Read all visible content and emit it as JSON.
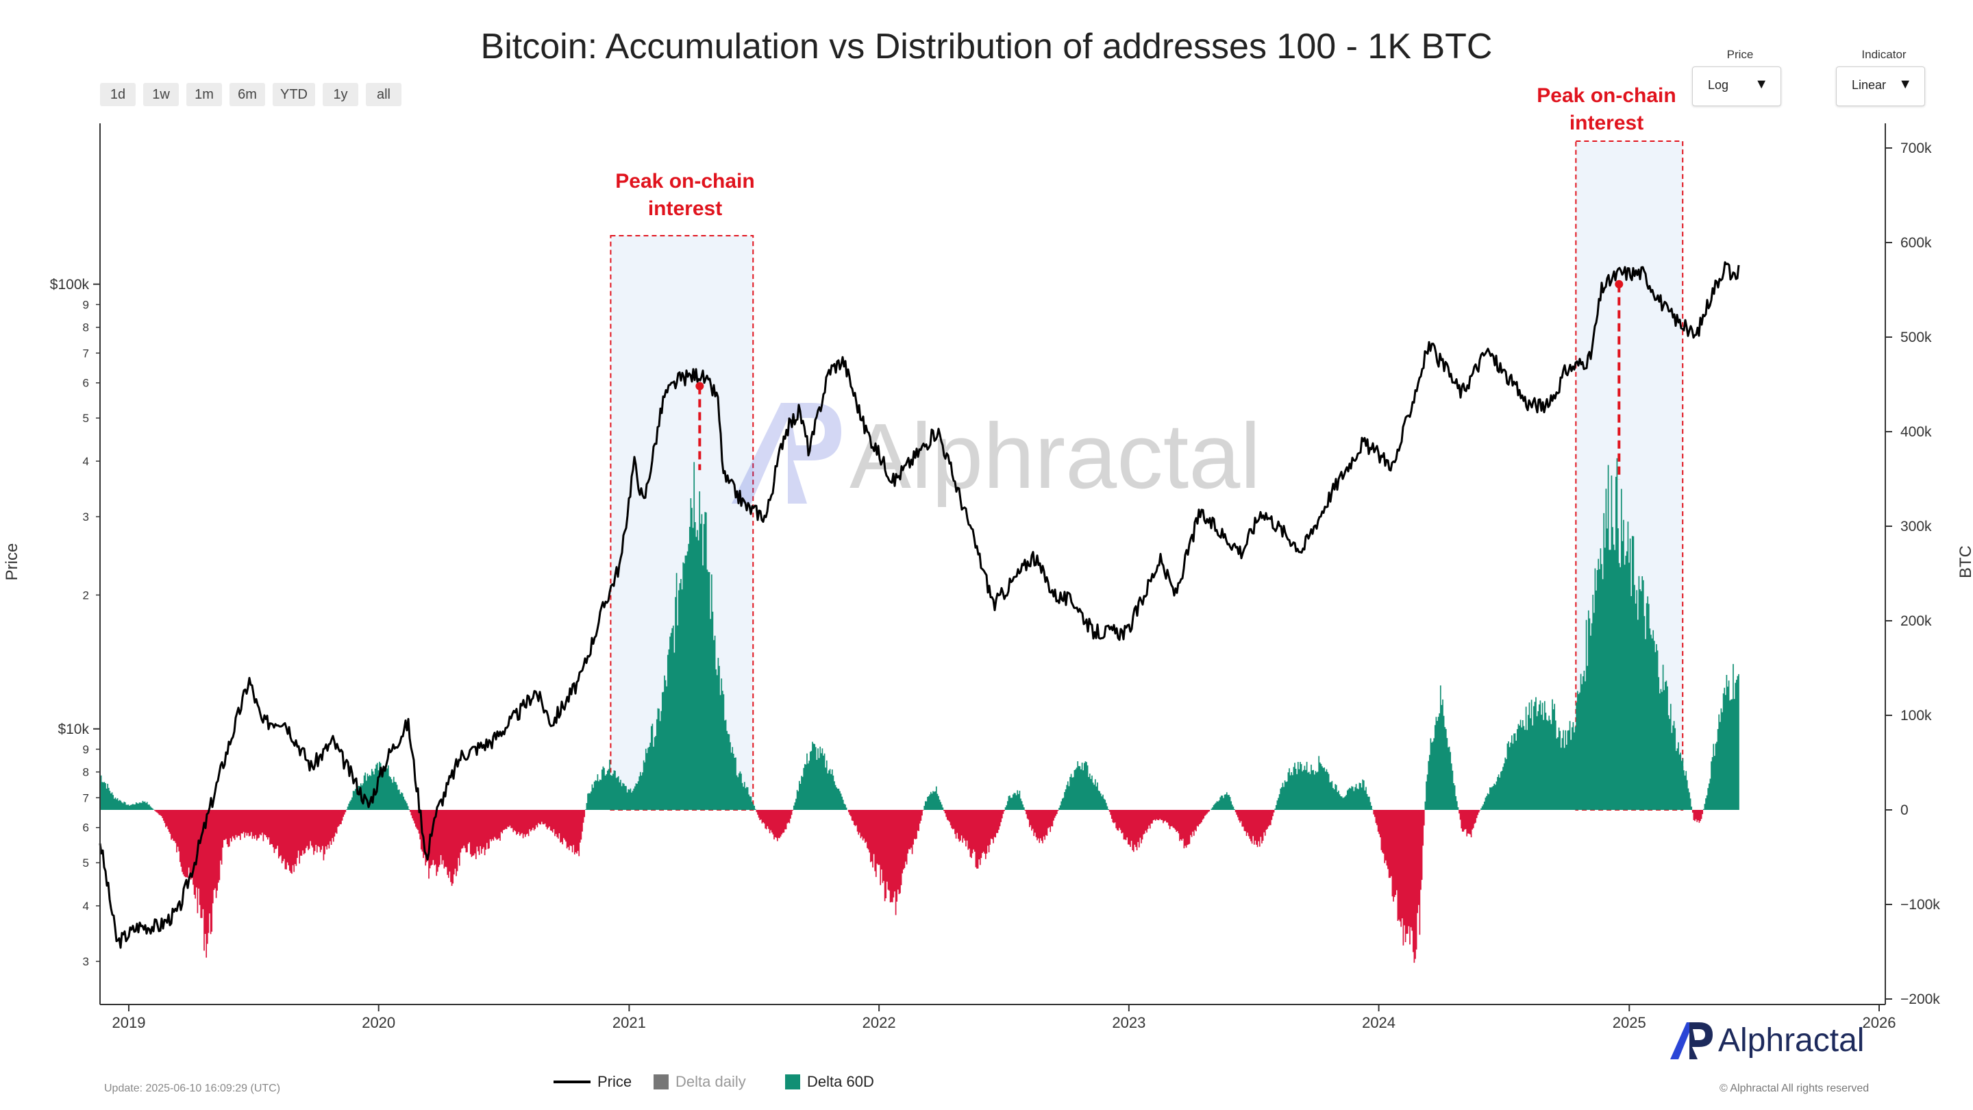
{
  "title": "Bitcoin: Accumulation vs Distribution of addresses 100 - 1K BTC",
  "range_buttons": [
    "1d",
    "1w",
    "1m",
    "6m",
    "YTD",
    "1y",
    "all"
  ],
  "controls": {
    "price": {
      "label": "Price",
      "value": "Log"
    },
    "indicator": {
      "label": "Indicator",
      "value": "Linear"
    }
  },
  "axes": {
    "left_title": "Price",
    "right_title": "BTC"
  },
  "annotations": [
    {
      "line1": "Peak on-chain",
      "line2": "interest"
    },
    {
      "line1": "Peak on-chain",
      "line2": "interest"
    }
  ],
  "watermark": "Alphractal",
  "brand": "Alphractal",
  "update_text": "Update: 2025-06-10 16:09:29 (UTC)",
  "copyright": "© Alphractal All rights reserved",
  "legend": [
    {
      "label": "Price",
      "color": "#000000",
      "muted": false
    },
    {
      "label": "Delta daily",
      "color": "#777777",
      "muted": true
    },
    {
      "label": "Delta 60D",
      "color": "#118f74",
      "muted": false
    }
  ],
  "colors": {
    "positive": "#118f74",
    "negative": "#dc143c",
    "price": "#000000",
    "annotation": "#e0131d",
    "highlight": "#eef4fb"
  },
  "chart_data": {
    "type": "line",
    "x_range": [
      "2018-11-20",
      "2026-01-10"
    ],
    "x_ticks": [
      "2019",
      "2020",
      "2021",
      "2022",
      "2023",
      "2024",
      "2025",
      "2026"
    ],
    "price_scale": "log",
    "price_range": [
      2400,
      230000
    ],
    "price_major_ticks": [
      {
        "value": 10000,
        "label": "$10k"
      },
      {
        "value": 100000,
        "label": "$100k"
      }
    ],
    "price_minor_ticks": [
      {
        "value": 3000,
        "label": "3"
      },
      {
        "value": 4000,
        "label": "4"
      },
      {
        "value": 5000,
        "label": "5"
      },
      {
        "value": 6000,
        "label": "6"
      },
      {
        "value": 7000,
        "label": "7"
      },
      {
        "value": 8000,
        "label": "8"
      },
      {
        "value": 9000,
        "label": "9"
      },
      {
        "value": 20000,
        "label": "2"
      },
      {
        "value": 30000,
        "label": "3"
      },
      {
        "value": 40000,
        "label": "4"
      },
      {
        "value": 50000,
        "label": "5"
      },
      {
        "value": 60000,
        "label": "6"
      },
      {
        "value": 70000,
        "label": "7"
      },
      {
        "value": 80000,
        "label": "8"
      },
      {
        "value": 90000,
        "label": "9"
      }
    ],
    "btc_range": [
      -200000,
      700000
    ],
    "btc_ticks": [
      {
        "value": 700000,
        "label": "700k"
      },
      {
        "value": 600000,
        "label": "600k"
      },
      {
        "value": 500000,
        "label": "500k"
      },
      {
        "value": 400000,
        "label": "400k"
      },
      {
        "value": 300000,
        "label": "300k"
      },
      {
        "value": 200000,
        "label": "200k"
      },
      {
        "value": 100000,
        "label": "100k"
      },
      {
        "value": 0,
        "label": "0"
      },
      {
        "value": -100000,
        "label": "−100k"
      },
      {
        "value": -200000,
        "label": "−200k"
      }
    ],
    "price_series": {
      "name": "Price",
      "points": [
        [
          "2018-11-20",
          5600
        ],
        [
          "2018-12-15",
          3300
        ],
        [
          "2019-01-15",
          3600
        ],
        [
          "2019-02-15",
          3600
        ],
        [
          "2019-03-15",
          3900
        ],
        [
          "2019-04-10",
          5200
        ],
        [
          "2019-05-15",
          8000
        ],
        [
          "2019-06-26",
          12900
        ],
        [
          "2019-07-15",
          10300
        ],
        [
          "2019-08-15",
          10500
        ],
        [
          "2019-09-25",
          8200
        ],
        [
          "2019-10-26",
          9400
        ],
        [
          "2019-12-17",
          6700
        ],
        [
          "2020-01-15",
          8700
        ],
        [
          "2020-02-13",
          10300
        ],
        [
          "2020-03-12",
          5000
        ],
        [
          "2020-03-20",
          6200
        ],
        [
          "2020-04-30",
          8700
        ],
        [
          "2020-06-15",
          9400
        ],
        [
          "2020-07-27",
          11000
        ],
        [
          "2020-08-17",
          12200
        ],
        [
          "2020-09-10",
          10300
        ],
        [
          "2020-10-21",
          12900
        ],
        [
          "2020-11-25",
          18900
        ],
        [
          "2020-12-20",
          23800
        ],
        [
          "2021-01-08",
          40000
        ],
        [
          "2021-01-22",
          32000
        ],
        [
          "2021-02-21",
          56000
        ],
        [
          "2021-03-14",
          61000
        ],
        [
          "2021-04-14",
          63000
        ],
        [
          "2021-05-10",
          56000
        ],
        [
          "2021-05-19",
          37000
        ],
        [
          "2021-06-22",
          31500
        ],
        [
          "2021-07-20",
          30000
        ],
        [
          "2021-08-15",
          46000
        ],
        [
          "2021-09-07",
          52000
        ],
        [
          "2021-09-21",
          42000
        ],
        [
          "2021-10-20",
          64000
        ],
        [
          "2021-11-10",
          67500
        ],
        [
          "2021-12-10",
          48000
        ],
        [
          "2022-01-22",
          36000
        ],
        [
          "2022-03-28",
          47000
        ],
        [
          "2022-05-12",
          29000
        ],
        [
          "2022-06-18",
          19000
        ],
        [
          "2022-08-14",
          24500
        ],
        [
          "2022-09-15",
          20000
        ],
        [
          "2022-10-15",
          19200
        ],
        [
          "2022-11-09",
          16500
        ],
        [
          "2022-12-30",
          16500
        ],
        [
          "2023-02-15",
          24000
        ],
        [
          "2023-03-10",
          20000
        ],
        [
          "2023-04-14",
          30500
        ],
        [
          "2023-06-15",
          25000
        ],
        [
          "2023-07-14",
          31000
        ],
        [
          "2023-09-11",
          25200
        ],
        [
          "2023-10-24",
          34000
        ],
        [
          "2023-12-08",
          44000
        ],
        [
          "2024-01-23",
          39000
        ],
        [
          "2024-03-14",
          73000
        ],
        [
          "2024-05-01",
          57000
        ],
        [
          "2024-06-07",
          71000
        ],
        [
          "2024-08-05",
          54000
        ],
        [
          "2024-09-06",
          53000
        ],
        [
          "2024-09-30",
          64000
        ],
        [
          "2024-11-05",
          68000
        ],
        [
          "2024-11-22",
          98000
        ],
        [
          "2024-12-17",
          106000
        ],
        [
          "2025-01-21",
          106000
        ],
        [
          "2025-02-25",
          87000
        ],
        [
          "2025-04-08",
          76000
        ],
        [
          "2025-05-01",
          95000
        ],
        [
          "2025-05-22",
          111000
        ],
        [
          "2025-06-05",
          101000
        ],
        [
          "2025-06-10",
          109000
        ]
      ]
    },
    "delta_60d_series": {
      "name": "Delta 60D",
      "unit": "BTC",
      "points": [
        [
          "2018-11-20",
          40000
        ],
        [
          "2018-12-10",
          15000
        ],
        [
          "2019-01-01",
          5000
        ],
        [
          "2019-01-25",
          10000
        ],
        [
          "2019-02-20",
          -10000
        ],
        [
          "2019-03-10",
          -40000
        ],
        [
          "2019-03-25",
          -70000
        ],
        [
          "2019-04-10",
          -95000
        ],
        [
          "2019-04-25",
          -150000
        ],
        [
          "2019-05-05",
          -110000
        ],
        [
          "2019-05-20",
          -40000
        ],
        [
          "2019-06-15",
          -30000
        ],
        [
          "2019-07-15",
          -30000
        ],
        [
          "2019-08-05",
          -45000
        ],
        [
          "2019-08-25",
          -65000
        ],
        [
          "2019-09-20",
          -40000
        ],
        [
          "2019-10-15",
          -50000
        ],
        [
          "2019-11-10",
          -10000
        ],
        [
          "2019-11-25",
          20000
        ],
        [
          "2019-12-15",
          40000
        ],
        [
          "2020-01-10",
          50000
        ],
        [
          "2020-01-25",
          30000
        ],
        [
          "2020-02-10",
          10000
        ],
        [
          "2020-02-25",
          -20000
        ],
        [
          "2020-03-15",
          -70000
        ],
        [
          "2020-04-01",
          -60000
        ],
        [
          "2020-04-20",
          -85000
        ],
        [
          "2020-05-05",
          -40000
        ],
        [
          "2020-05-25",
          -50000
        ],
        [
          "2020-06-20",
          -35000
        ],
        [
          "2020-07-10",
          -20000
        ],
        [
          "2020-08-01",
          -30000
        ],
        [
          "2020-08-25",
          -15000
        ],
        [
          "2020-09-20",
          -30000
        ],
        [
          "2020-10-05",
          -40000
        ],
        [
          "2020-10-20",
          -50000
        ],
        [
          "2020-11-01",
          15000
        ],
        [
          "2020-11-15",
          35000
        ],
        [
          "2020-12-01",
          50000
        ],
        [
          "2020-12-15",
          40000
        ],
        [
          "2020-12-30",
          20000
        ],
        [
          "2021-01-15",
          30000
        ],
        [
          "2021-01-31",
          80000
        ],
        [
          "2021-02-10",
          90000
        ],
        [
          "2021-02-25",
          150000
        ],
        [
          "2021-03-10",
          220000
        ],
        [
          "2021-03-25",
          320000
        ],
        [
          "2021-04-05",
          370000
        ],
        [
          "2021-04-15",
          345000
        ],
        [
          "2021-04-25",
          280000
        ],
        [
          "2021-05-10",
          170000
        ],
        [
          "2021-05-25",
          80000
        ],
        [
          "2021-06-10",
          40000
        ],
        [
          "2021-06-25",
          20000
        ],
        [
          "2021-07-10",
          -10000
        ],
        [
          "2021-07-25",
          -25000
        ],
        [
          "2021-08-10",
          -35000
        ],
        [
          "2021-08-25",
          -10000
        ],
        [
          "2021-09-10",
          40000
        ],
        [
          "2021-09-25",
          70000
        ],
        [
          "2021-10-10",
          60000
        ],
        [
          "2021-10-25",
          40000
        ],
        [
          "2021-11-10",
          10000
        ],
        [
          "2021-11-25",
          -15000
        ],
        [
          "2021-12-10",
          -35000
        ],
        [
          "2021-12-25",
          -60000
        ],
        [
          "2022-01-10",
          -90000
        ],
        [
          "2022-01-25",
          -110000
        ],
        [
          "2022-02-10",
          -60000
        ],
        [
          "2022-02-25",
          -30000
        ],
        [
          "2022-03-10",
          10000
        ],
        [
          "2022-03-25",
          25000
        ],
        [
          "2022-04-10",
          -10000
        ],
        [
          "2022-04-25",
          -30000
        ],
        [
          "2022-05-10",
          -40000
        ],
        [
          "2022-05-25",
          -60000
        ],
        [
          "2022-06-10",
          -45000
        ],
        [
          "2022-06-25",
          -20000
        ],
        [
          "2022-07-10",
          15000
        ],
        [
          "2022-07-25",
          20000
        ],
        [
          "2022-08-10",
          -20000
        ],
        [
          "2022-08-25",
          -35000
        ],
        [
          "2022-09-10",
          -20000
        ],
        [
          "2022-09-25",
          10000
        ],
        [
          "2022-10-10",
          40000
        ],
        [
          "2022-10-25",
          55000
        ],
        [
          "2022-11-10",
          35000
        ],
        [
          "2022-11-25",
          15000
        ],
        [
          "2022-12-10",
          -15000
        ],
        [
          "2022-12-25",
          -30000
        ],
        [
          "2023-01-10",
          -45000
        ],
        [
          "2023-01-25",
          -25000
        ],
        [
          "2023-02-10",
          -10000
        ],
        [
          "2023-02-25",
          -15000
        ],
        [
          "2023-03-10",
          -25000
        ],
        [
          "2023-03-25",
          -40000
        ],
        [
          "2023-04-10",
          -20000
        ],
        [
          "2023-04-25",
          -5000
        ],
        [
          "2023-05-10",
          10000
        ],
        [
          "2023-05-25",
          20000
        ],
        [
          "2023-06-10",
          -10000
        ],
        [
          "2023-06-25",
          -30000
        ],
        [
          "2023-07-10",
          -40000
        ],
        [
          "2023-07-25",
          -20000
        ],
        [
          "2023-08-10",
          20000
        ],
        [
          "2023-08-25",
          45000
        ],
        [
          "2023-09-10",
          50000
        ],
        [
          "2023-09-25",
          45000
        ],
        [
          "2023-10-10",
          55000
        ],
        [
          "2023-10-25",
          30000
        ],
        [
          "2023-11-10",
          15000
        ],
        [
          "2023-11-25",
          25000
        ],
        [
          "2023-12-10",
          30000
        ],
        [
          "2023-12-20",
          10000
        ],
        [
          "2024-01-05",
          -40000
        ],
        [
          "2024-01-20",
          -90000
        ],
        [
          "2024-02-05",
          -130000
        ],
        [
          "2024-02-20",
          -165000
        ],
        [
          "2024-03-01",
          -120000
        ],
        [
          "2024-03-10",
          30000
        ],
        [
          "2024-03-20",
          90000
        ],
        [
          "2024-04-01",
          125000
        ],
        [
          "2024-04-10",
          90000
        ],
        [
          "2024-04-20",
          30000
        ],
        [
          "2024-05-01",
          -20000
        ],
        [
          "2024-05-15",
          -30000
        ],
        [
          "2024-05-25",
          -5000
        ],
        [
          "2024-06-10",
          20000
        ],
        [
          "2024-06-25",
          40000
        ],
        [
          "2024-07-10",
          70000
        ],
        [
          "2024-07-25",
          100000
        ],
        [
          "2024-08-10",
          105000
        ],
        [
          "2024-08-25",
          120000
        ],
        [
          "2024-09-10",
          110000
        ],
        [
          "2024-09-25",
          80000
        ],
        [
          "2024-10-10",
          90000
        ],
        [
          "2024-10-25",
          150000
        ],
        [
          "2024-11-10",
          250000
        ],
        [
          "2024-11-25",
          320000
        ],
        [
          "2024-12-05",
          350000
        ],
        [
          "2024-12-15",
          340000
        ],
        [
          "2024-12-25",
          290000
        ],
        [
          "2025-01-10",
          260000
        ],
        [
          "2025-01-25",
          220000
        ],
        [
          "2025-02-10",
          170000
        ],
        [
          "2025-02-25",
          130000
        ],
        [
          "2025-03-10",
          80000
        ],
        [
          "2025-03-25",
          40000
        ],
        [
          "2025-04-05",
          -10000
        ],
        [
          "2025-04-15",
          -15000
        ],
        [
          "2025-04-25",
          20000
        ],
        [
          "2025-05-05",
          70000
        ],
        [
          "2025-05-15",
          110000
        ],
        [
          "2025-05-25",
          140000
        ],
        [
          "2025-06-05",
          150000
        ],
        [
          "2025-06-10",
          135000
        ]
      ]
    },
    "highlight_periods": [
      {
        "start": "2020-12-05",
        "end": "2021-07-01"
      },
      {
        "start": "2024-10-15",
        "end": "2025-03-20"
      }
    ],
    "peak_markers": [
      {
        "date": "2021-04-14",
        "price": 59000
      },
      {
        "date": "2024-12-17",
        "price": 100000
      }
    ]
  }
}
